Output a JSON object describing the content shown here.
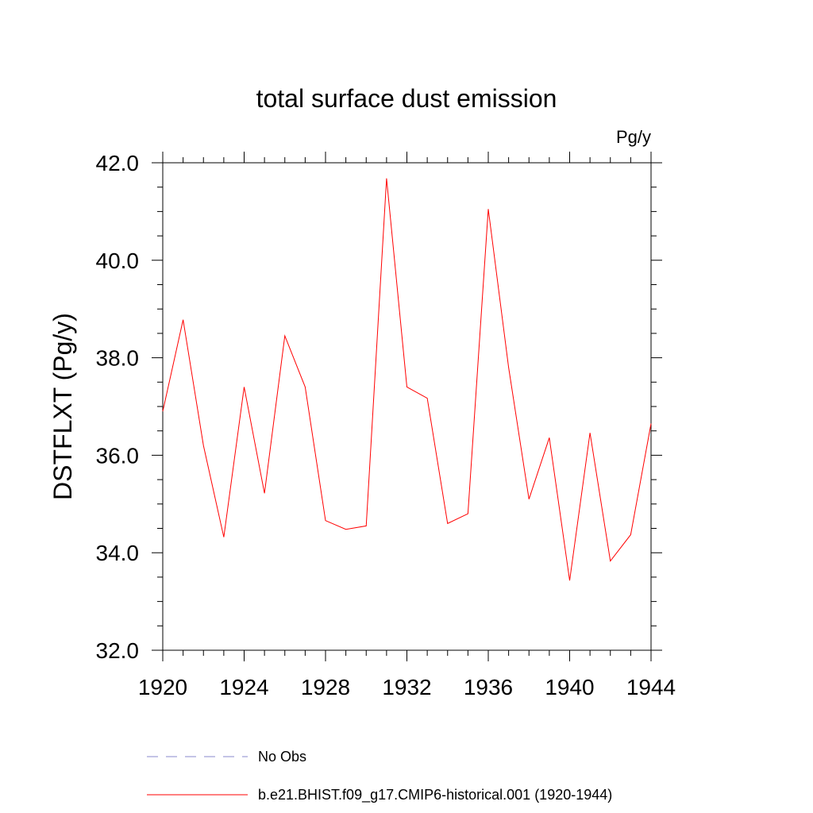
{
  "chart_data": {
    "type": "line",
    "title": "total surface dust emission",
    "units_label": "Pg/y",
    "xlabel": "",
    "ylabel": "DSTFLXT  (Pg/y)",
    "xlim": [
      1920,
      1944
    ],
    "ylim": [
      32.0,
      42.0
    ],
    "x_ticks": [
      1920,
      1924,
      1928,
      1932,
      1936,
      1940,
      1944
    ],
    "x_tick_labels": [
      "1920",
      "1924",
      "1928",
      "1932",
      "1936",
      "1940",
      "1944"
    ],
    "x_minor_step": 1,
    "y_ticks": [
      32.0,
      34.0,
      36.0,
      38.0,
      40.0,
      42.0
    ],
    "y_tick_labels": [
      "32.0",
      "34.0",
      "36.0",
      "38.0",
      "40.0",
      "42.0"
    ],
    "y_minor_step": 0.5,
    "grid": false,
    "legend_position": "bottom",
    "series": [
      {
        "name": "b.e21.BHIST.f09_g17.CMIP6-historical.001 (1920-1944)",
        "color": "#ff0000",
        "style": "solid",
        "x": [
          1920,
          1921,
          1922,
          1923,
          1924,
          1925,
          1926,
          1927,
          1928,
          1929,
          1930,
          1931,
          1932,
          1933,
          1934,
          1935,
          1936,
          1937,
          1938,
          1939,
          1940,
          1941,
          1942,
          1943,
          1944
        ],
        "values": [
          36.9,
          38.78,
          36.2,
          34.32,
          37.4,
          35.22,
          38.45,
          37.4,
          34.66,
          34.48,
          34.55,
          41.68,
          37.4,
          37.17,
          34.6,
          34.8,
          41.05,
          37.8,
          35.1,
          36.36,
          33.43,
          36.46,
          33.83,
          34.37,
          36.65
        ]
      }
    ],
    "legend": [
      {
        "label": "No Obs",
        "color": "#8888cc",
        "style": "dashed"
      },
      {
        "label": "b.e21.BHIST.f09_g17.CMIP6-historical.001 (1920-1944)",
        "color": "#ff0000",
        "style": "solid"
      }
    ]
  }
}
